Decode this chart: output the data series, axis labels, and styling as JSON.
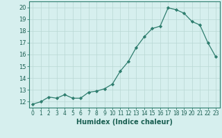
{
  "xlabel": "Humidex (Indice chaleur)",
  "x": [
    0,
    1,
    2,
    3,
    4,
    5,
    6,
    7,
    8,
    9,
    10,
    11,
    12,
    13,
    14,
    15,
    16,
    17,
    18,
    19,
    20,
    21,
    22,
    23
  ],
  "y": [
    11.8,
    12.0,
    12.4,
    12.3,
    12.6,
    12.3,
    12.3,
    12.8,
    12.9,
    13.1,
    13.5,
    14.6,
    15.4,
    16.6,
    17.5,
    18.2,
    18.4,
    19.95,
    19.8,
    19.5,
    18.8,
    18.5,
    17.0,
    15.8
  ],
  "line_color": "#2e7d6e",
  "marker": "D",
  "marker_size": 2.2,
  "bg_color": "#d6efee",
  "grid_color": "#b8d8d4",
  "axis_color": "#2e7d6e",
  "text_color": "#1a5f52",
  "ylim": [
    11.5,
    20.5
  ],
  "yticks": [
    12,
    13,
    14,
    15,
    16,
    17,
    18,
    19,
    20
  ],
  "xlim": [
    -0.5,
    23.5
  ],
  "tick_label_size": 6.0,
  "xlabel_size": 7.0
}
